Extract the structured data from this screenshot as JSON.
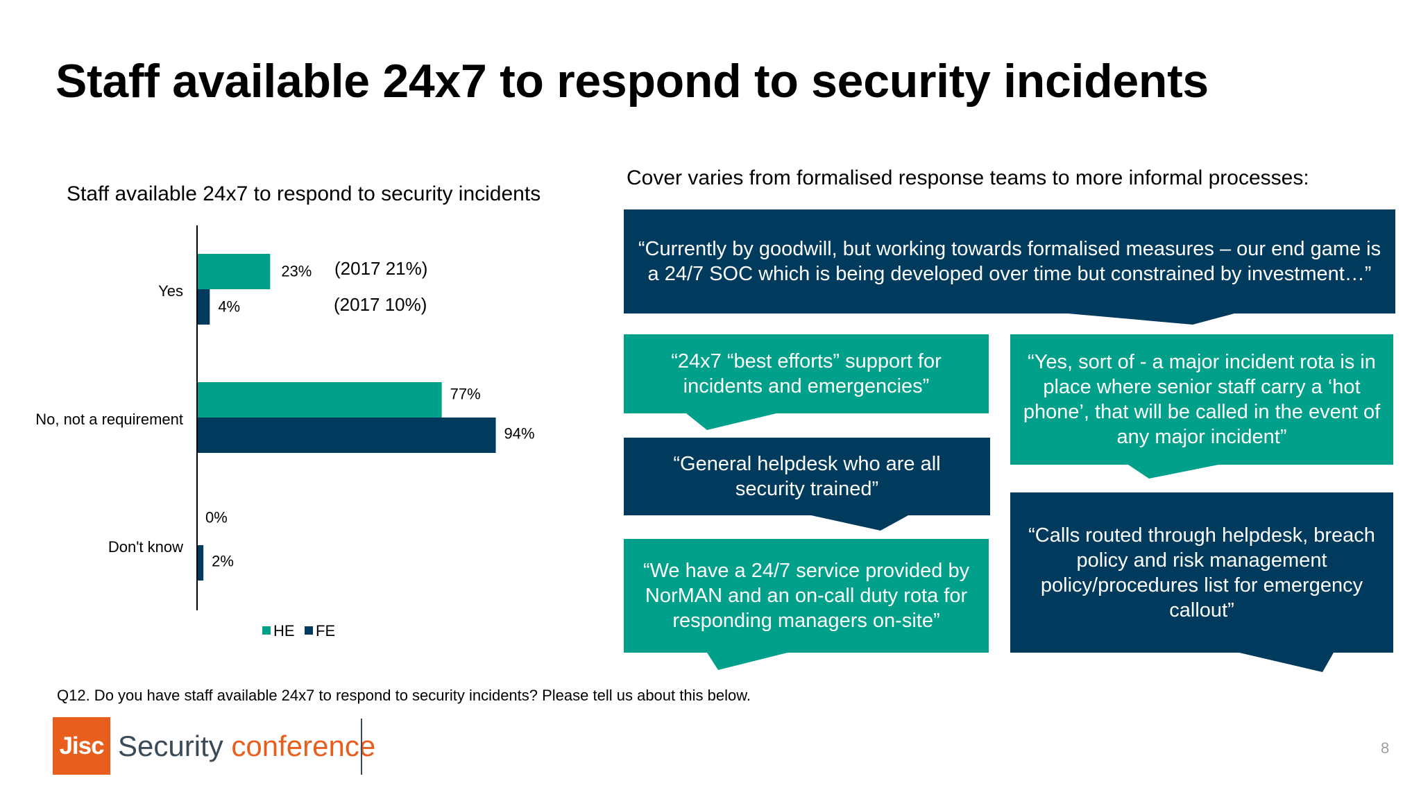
{
  "page_title": "Staff available 24x7 to respond to security incidents",
  "chart_data": {
    "type": "bar",
    "orientation": "horizontal",
    "title": "Staff available 24x7 to respond to security incidents",
    "categories": [
      "Yes",
      "No, not a requirement",
      "Don't know"
    ],
    "series": [
      {
        "name": "HE",
        "values": [
          23,
          77,
          0
        ],
        "labels": [
          "23%",
          "77%",
          "0%"
        ]
      },
      {
        "name": "FE",
        "values": [
          4,
          94,
          2
        ],
        "labels": [
          "4%",
          "94%",
          "2%"
        ]
      }
    ],
    "xlim": [
      0,
      100
    ],
    "annotations": [
      "(2017 21%)",
      "(2017 10%)"
    ],
    "legend": "bottom",
    "colors": {
      "HE": "#00a08a",
      "FE": "#003a5d"
    }
  },
  "cover_intro": "Cover varies from formalised response teams to more informal processes:",
  "quotes": [
    "“Currently by goodwill, but working towards formalised measures – our end game is a 24/7 SOC which is being developed over time but constrained by investment…”",
    "“24x7 “best efforts” support for incidents and emergencies”",
    "“Yes, sort of - a major incident rota is in place where senior staff carry a ‘hot phone’, that will be called in the event of any major incident”",
    "“General helpdesk who are all security trained”",
    "“Calls routed through helpdesk, breach policy and risk management policy/procedures list for emergency callout”",
    "“We have a 24/7 service provided by NorMAN and an on-call duty rota for responding managers on-site”"
  ],
  "footnote": "Q12. Do you have staff available 24x7 to respond to security incidents? Please tell us about this below.",
  "logo": {
    "mark": "Jisc",
    "word1": "Security",
    "word2": "conference"
  },
  "page_number": "8",
  "colors": {
    "teal": "#00a08a",
    "navy": "#003a5d",
    "orange": "#e85e1d"
  }
}
